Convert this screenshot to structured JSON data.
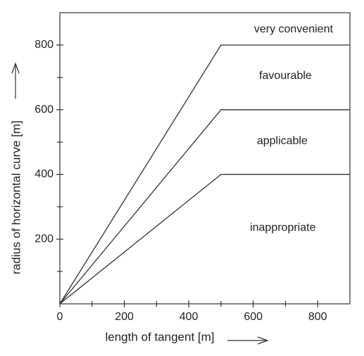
{
  "chart_data": {
    "type": "line",
    "x_label": "length of tangent [m]",
    "y_label": "radius of horizontal curve [m]",
    "x": [
      0,
      500,
      900
    ],
    "series": [
      {
        "color": "#333333",
        "values": [
          0,
          400,
          400
        ]
      },
      {
        "color": "#333333",
        "values": [
          0,
          600,
          600
        ]
      },
      {
        "color": "#333333",
        "values": [
          0,
          800,
          800
        ]
      }
    ],
    "xlim": [
      0,
      900
    ],
    "ylim": [
      0,
      900
    ],
    "xticks": [
      0,
      200,
      400,
      600,
      800
    ],
    "yticks": [
      200,
      400,
      600,
      800
    ],
    "xminor_ticks": [
      100,
      300,
      500,
      700
    ],
    "yminor_ticks": [
      100,
      300,
      500,
      700
    ],
    "annotations": [
      {
        "text": "very convenient",
        "x": 725,
        "y": 848
      },
      {
        "text": "favourable",
        "x": 700,
        "y": 704
      },
      {
        "text": "applicable",
        "x": 690,
        "y": 503
      },
      {
        "text": "inappropriate",
        "x": 692,
        "y": 235
      }
    ]
  }
}
